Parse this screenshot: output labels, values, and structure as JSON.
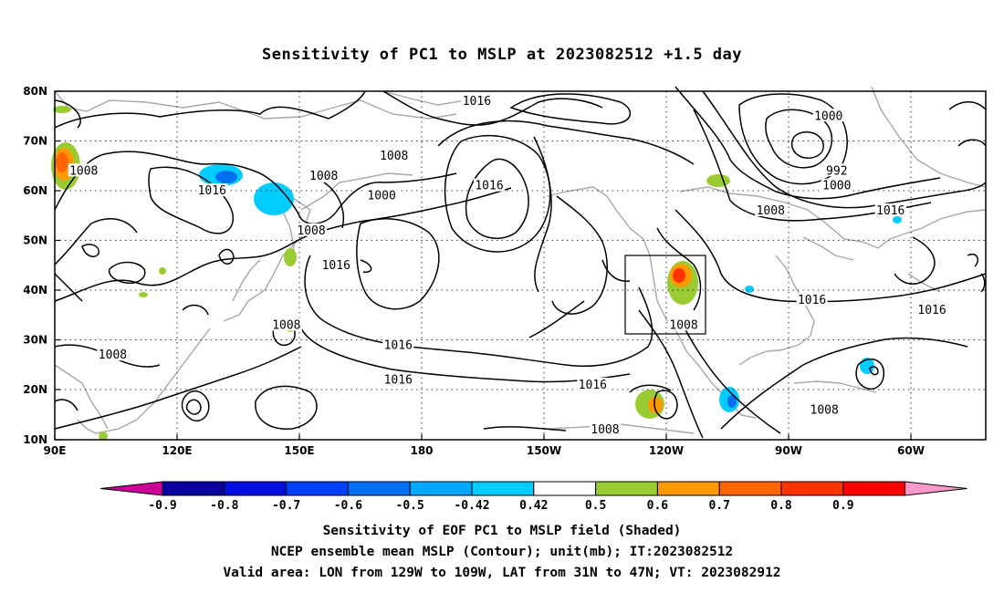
{
  "title": "Sensitivity of PC1 to MSLP at 2023082512 +1.5 day",
  "map": {
    "lat_labels": [
      "80N",
      "70N",
      "60N",
      "50N",
      "40N",
      "30N",
      "20N",
      "10N"
    ],
    "lon_labels": [
      "90E",
      "120E",
      "150E",
      "180",
      "150W",
      "120W",
      "90W",
      "60W"
    ],
    "contour_labels": [
      {
        "text": "1016",
        "lon": 192,
        "lat": 78
      },
      {
        "text": "1008",
        "lon": 172,
        "lat": 67
      },
      {
        "text": "1008",
        "lon": 97,
        "lat": 64
      },
      {
        "text": "1016",
        "lon": 128,
        "lat": 60
      },
      {
        "text": "1008",
        "lon": 155,
        "lat": 63
      },
      {
        "text": "1008",
        "lon": 152,
        "lat": 52
      },
      {
        "text": "1000",
        "lon": 169,
        "lat": 59
      },
      {
        "text": "1016",
        "lon": 195,
        "lat": 61
      },
      {
        "text": "1000",
        "lon": 277,
        "lat": 75
      },
      {
        "text": "992",
        "lon": 279,
        "lat": 64
      },
      {
        "text": "1000",
        "lon": 279,
        "lat": 61
      },
      {
        "text": "1008",
        "lon": 263,
        "lat": 56
      },
      {
        "text": "1016",
        "lon": 292,
        "lat": 56
      },
      {
        "text": "1016",
        "lon": 158,
        "lat": 45
      },
      {
        "text": "1008",
        "lon": 146,
        "lat": 33
      },
      {
        "text": "1008",
        "lon": 104,
        "lat": 27
      },
      {
        "text": "1016",
        "lon": 173,
        "lat": 29
      },
      {
        "text": "1016",
        "lon": 173,
        "lat": 22
      },
      {
        "text": "1016",
        "lon": 220,
        "lat": 21
      },
      {
        "text": "1008",
        "lon": 242,
        "lat": 33
      },
      {
        "text": "1016",
        "lon": 273,
        "lat": 38
      },
      {
        "text": "1016",
        "lon": 302,
        "lat": 36
      },
      {
        "text": "1008",
        "lon": 223,
        "lat": 12
      },
      {
        "text": "1008",
        "lon": 276,
        "lat": 16
      }
    ],
    "valid_box": {
      "lon_min": -129,
      "lon_max": -109,
      "lat_min": 31,
      "lat_max": 47
    }
  },
  "colorbar": {
    "labels": [
      "-0.9",
      "-0.8",
      "-0.7",
      "-0.6",
      "-0.5",
      "-0.42",
      "0.42",
      "0.5",
      "0.6",
      "0.7",
      "0.8",
      "0.9"
    ],
    "colors": [
      "#0a00a0",
      "#0010e0",
      "#0040ff",
      "#0070f0",
      "#00a8ff",
      "#00ccff",
      "#ffffff",
      "#99cc33",
      "#ff9900",
      "#ff6600",
      "#ff3300",
      "#ff0000"
    ],
    "low_end_color": "#cc0099",
    "high_end_color": "#ff99cc"
  },
  "caption": {
    "line1": "Sensitivity of EOF PC1 to MSLP field (Shaded)",
    "line2": "NCEP ensemble mean MSLP (Contour); unit(mb); IT:2023082512",
    "line3": "Valid area: LON from 129W to 109W, LAT from 31N to 47N; VT: 2023082912"
  }
}
